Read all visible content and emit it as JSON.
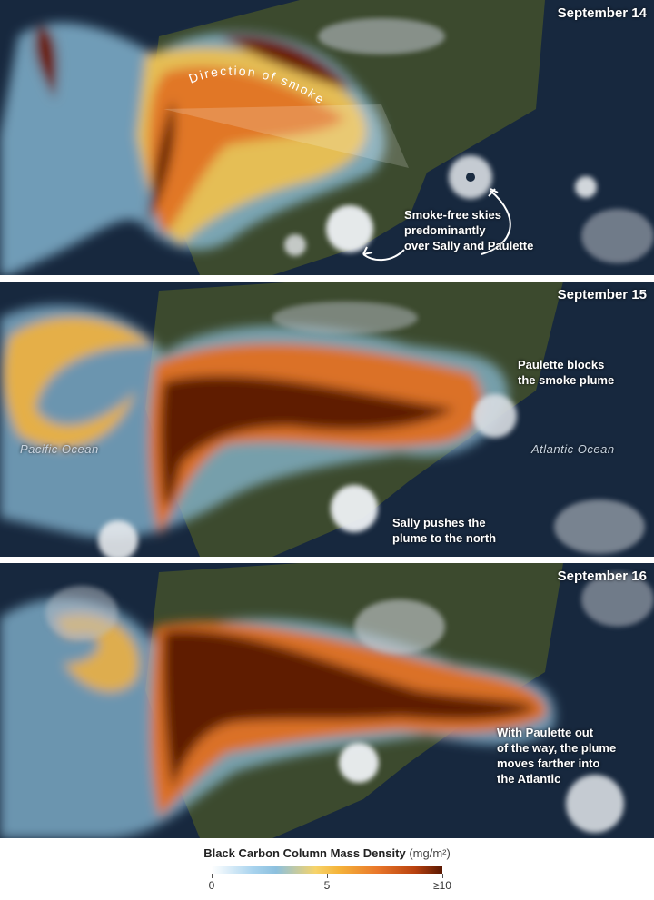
{
  "panels": [
    {
      "date": "September 14",
      "notes": [
        {
          "text": "Smoke-free skies\npredominantly\nover Sally and Paulette"
        }
      ],
      "path_label": "Direction of smoke"
    },
    {
      "date": "September 15",
      "notes": [
        {
          "text": "Paulette blocks\nthe smoke plume"
        },
        {
          "text": "Sally pushes the\nplume to the north"
        }
      ],
      "ocean_labels": [
        "Pacific Ocean",
        "Atlantic Ocean"
      ]
    },
    {
      "date": "September 16",
      "notes": [
        {
          "text": "With Paulette out\nof the way, the plume\nmoves farther into\nthe Atlantic"
        }
      ]
    }
  ],
  "legend": {
    "title": "Black Carbon Column Mass Density",
    "unit": "(mg/m²)",
    "ticks": [
      {
        "value": 0,
        "label": "0"
      },
      {
        "value": 5,
        "label": "5"
      },
      {
        "value": 10,
        "label": "≥10"
      }
    ],
    "range": [
      0,
      10
    ],
    "colors": [
      "#ffffff",
      "#a8d3ee",
      "#f6d36a",
      "#e9772a",
      "#5a1802"
    ]
  }
}
